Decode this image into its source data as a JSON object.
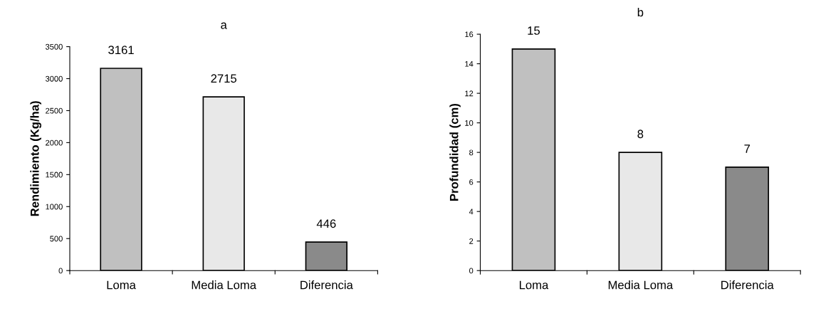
{
  "chart_data": [
    {
      "type": "bar",
      "title": "a",
      "ylabel": "Rendimiento (Kg/ha)",
      "categories": [
        "Loma",
        "Media Loma",
        "Diferencia"
      ],
      "values": [
        3161,
        2715,
        446
      ],
      "colors": [
        "#c0c0c0",
        "#e8e8e8",
        "#8a8a8a"
      ],
      "ylim": [
        0,
        3500
      ],
      "yticks": [
        0,
        500,
        1000,
        1500,
        2000,
        2500,
        3000,
        3500
      ],
      "data_labels": true,
      "grid": false,
      "legend": false
    },
    {
      "type": "bar",
      "title": "b",
      "ylabel": "Profundidad (cm)",
      "categories": [
        "Loma",
        "Media Loma",
        "Diferencia"
      ],
      "values": [
        15,
        8,
        7
      ],
      "colors": [
        "#c0c0c0",
        "#e8e8e8",
        "#8a8a8a"
      ],
      "ylim": [
        0,
        16
      ],
      "yticks": [
        0,
        2,
        4,
        6,
        8,
        10,
        12,
        14,
        16
      ],
      "data_labels": true,
      "grid": false,
      "legend": false
    }
  ]
}
